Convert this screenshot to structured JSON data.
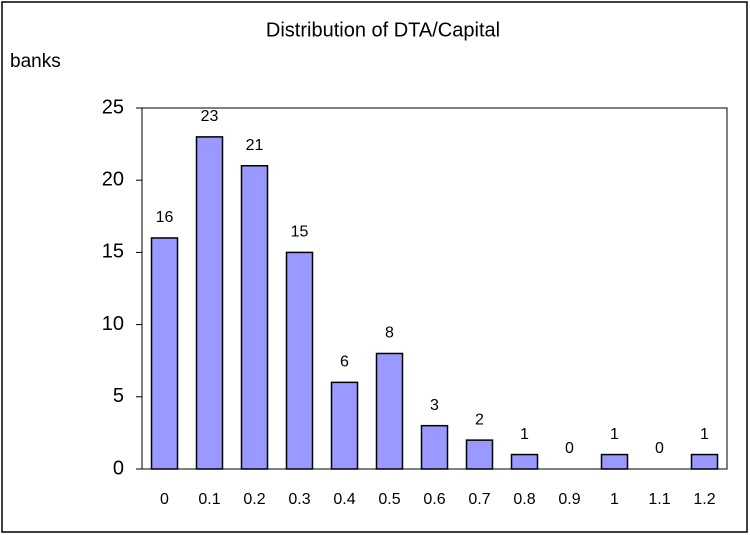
{
  "chart_data": {
    "type": "bar",
    "title": "Distribution of DTA/Capital",
    "y_label": "banks",
    "categories": [
      "0",
      "0.1",
      "0.2",
      "0.3",
      "0.4",
      "0.5",
      "0.6",
      "0.7",
      "0.8",
      "0.9",
      "1",
      "1.1",
      "1.2"
    ],
    "values": [
      16,
      23,
      21,
      15,
      6,
      8,
      3,
      2,
      1,
      0,
      1,
      0,
      1
    ],
    "color": "#9999ff",
    "ylim": [
      0,
      25
    ],
    "yticks": [
      0,
      5,
      10,
      15,
      20,
      25
    ],
    "grid": false
  }
}
